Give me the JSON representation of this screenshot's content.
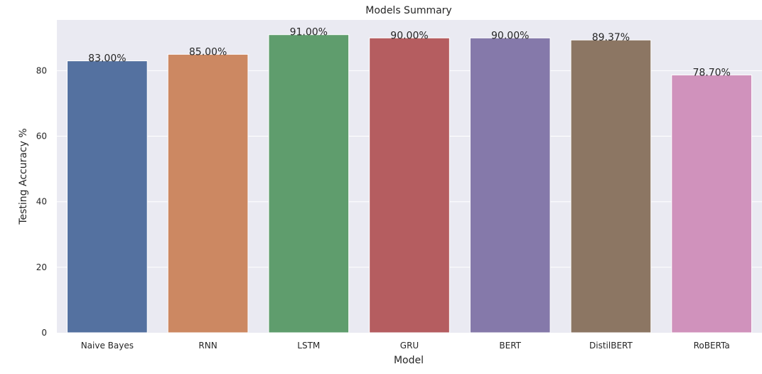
{
  "chart_data": {
    "type": "bar",
    "title": "Models Summary",
    "xlabel": "Model",
    "ylabel": "Testing Accuracy %",
    "categories": [
      "Naive Bayes",
      "RNN",
      "LSTM",
      "GRU",
      "BERT",
      "DistilBERT",
      "RoBERTa"
    ],
    "values": [
      83.0,
      85.0,
      91.0,
      90.0,
      90.0,
      89.37,
      78.7
    ],
    "data_labels": [
      "83.00%",
      "85.00%",
      "91.00%",
      "90.00%",
      "90.00%",
      "89.37%",
      "78.70%"
    ],
    "colors": [
      "#5471a0",
      "#cc8862",
      "#5f9d6d",
      "#b55d60",
      "#8579aa",
      "#8c7663",
      "#d092bc"
    ],
    "yticks": [
      0,
      20,
      40,
      60,
      80
    ],
    "ylim": [
      0,
      95.5
    ],
    "grid": true,
    "background": "#eaeaf2",
    "gridline_color": "#ffffff"
  }
}
